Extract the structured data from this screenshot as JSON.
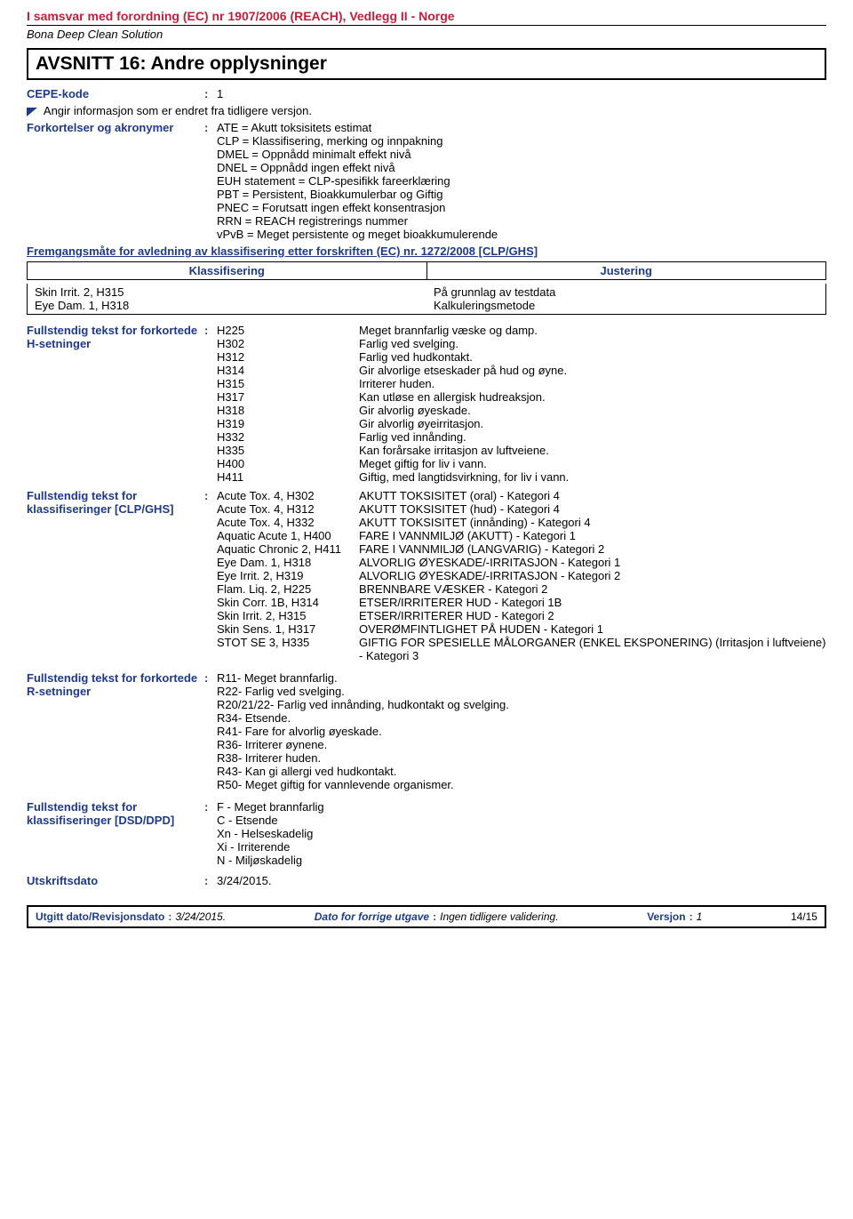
{
  "header": {
    "regulation": "I samsvar med forordning (EC) nr 1907/2006 (REACH), Vedlegg II - Norge",
    "product": "Bona Deep Clean Solution"
  },
  "section": {
    "title": "AVSNITT 16: Andre opplysninger"
  },
  "cepe": {
    "label": "CEPE-kode",
    "value": "1"
  },
  "change_note": "Angir informasjon som er endret fra tidligere versjon.",
  "acronyms": {
    "label": "Forkortelser og akronymer",
    "lines": [
      "ATE = Akutt toksisitets estimat",
      "CLP = Klassifisering, merking og innpakning",
      "DMEL = Oppnådd minimalt effekt nivå",
      "DNEL = Oppnådd ingen effekt nivå",
      "EUH statement = CLP-spesifikk fareerklæring",
      "PBT = Persistent, Bioakkumulerbar og Giftig",
      "PNEC = Forutsatt ingen effekt konsentrasjon",
      "RRN = REACH registrerings nummer",
      "vPvB = Meget persistente og meget bioakkumulerende"
    ]
  },
  "derivation": {
    "label": "Fremgangsmåte for avledning av klassifisering etter forskriften (EC) nr. 1272/2008 [CLP/GHS]",
    "col1": "Klassifisering",
    "col2": "Justering",
    "row1": {
      "left": "Skin Irrit. 2, H315",
      "right": "På grunnlag av testdata"
    },
    "row2": {
      "left": "Eye Dam. 1, H318",
      "right": "Kalkuleringsmetode"
    }
  },
  "hphrases": {
    "label": "Fullstendig tekst for forkortede H-setninger",
    "items": [
      {
        "code": "H225",
        "desc": "Meget brannfarlig væske og damp."
      },
      {
        "code": "H302",
        "desc": "Farlig ved svelging."
      },
      {
        "code": "H312",
        "desc": "Farlig ved hudkontakt."
      },
      {
        "code": "H314",
        "desc": "Gir alvorlige etseskader på hud og øyne."
      },
      {
        "code": "H315",
        "desc": "Irriterer huden."
      },
      {
        "code": "H317",
        "desc": "Kan utløse en allergisk hudreaksjon."
      },
      {
        "code": "H318",
        "desc": "Gir alvorlig øyeskade."
      },
      {
        "code": "H319",
        "desc": "Gir alvorlig øyeirritasjon."
      },
      {
        "code": "H332",
        "desc": "Farlig ved innånding."
      },
      {
        "code": "H335",
        "desc": "Kan forårsake irritasjon av luftveiene."
      },
      {
        "code": "H400",
        "desc": "Meget giftig for liv i vann."
      },
      {
        "code": "H411",
        "desc": "Giftig, med langtidsvirkning, for liv i vann."
      }
    ]
  },
  "clpghs": {
    "label": "Fullstendig tekst for klassifiseringer [CLP/GHS]",
    "items": [
      {
        "code": "Acute Tox. 4, H302",
        "desc": "AKUTT TOKSISITET (oral) - Kategori 4"
      },
      {
        "code": "Acute Tox. 4, H312",
        "desc": "AKUTT TOKSISITET (hud) - Kategori 4"
      },
      {
        "code": "Acute Tox. 4, H332",
        "desc": "AKUTT TOKSISITET (innånding) - Kategori 4"
      },
      {
        "code": "Aquatic Acute 1, H400",
        "desc": "FARE I VANNMILJØ (AKUTT) - Kategori 1"
      },
      {
        "code": "Aquatic Chronic 2, H411",
        "desc": "FARE I VANNMILJØ (LANGVARIG) - Kategori 2"
      },
      {
        "code": "Eye Dam. 1, H318",
        "desc": "ALVORLIG ØYESKADE/-IRRITASJON - Kategori 1"
      },
      {
        "code": "Eye Irrit. 2, H319",
        "desc": "ALVORLIG ØYESKADE/-IRRITASJON - Kategori 2"
      },
      {
        "code": "Flam. Liq. 2, H225",
        "desc": "BRENNBARE VÆSKER - Kategori 2"
      },
      {
        "code": "Skin Corr. 1B, H314",
        "desc": "ETSER/IRRITERER HUD - Kategori 1B"
      },
      {
        "code": "Skin Irrit. 2, H315",
        "desc": "ETSER/IRRITERER HUD - Kategori 2"
      },
      {
        "code": "Skin Sens. 1, H317",
        "desc": "OVERØMFINTLIGHET PÅ HUDEN - Kategori 1"
      },
      {
        "code": "STOT SE 3, H335",
        "desc": "GIFTIG FOR SPESIELLE MÅLORGANER (ENKEL EKSPONERING) (Irritasjon i luftveiene) - Kategori 3"
      }
    ]
  },
  "rphrases": {
    "label": "Fullstendig tekst for forkortede R-setninger",
    "lines": [
      "R11- Meget brannfarlig.",
      "R22- Farlig ved svelging.",
      "R20/21/22- Farlig ved innånding, hudkontakt og svelging.",
      "R34- Etsende.",
      "R41- Fare for alvorlig øyeskade.",
      "R36- Irriterer øynene.",
      "R38- Irriterer huden.",
      "R43- Kan gi allergi ved hudkontakt.",
      "R50- Meget giftig for vannlevende organismer."
    ]
  },
  "dsddpd": {
    "label": "Fullstendig tekst for klassifiseringer [DSD/DPD]",
    "lines": [
      "F - Meget brannfarlig",
      "C - Etsende",
      "Xn - Helseskadelig",
      "Xi - Irriterende",
      "N - Miljøskadelig"
    ]
  },
  "printdate": {
    "label": "Utskriftsdato",
    "value": "3/24/2015."
  },
  "footer": {
    "issued_label": "Utgitt dato/Revisjonsdato",
    "issued_value": "3/24/2015.",
    "prev_label": "Dato for forrige utgave",
    "prev_value": "Ingen tidligere validering.",
    "version_label": "Versjon",
    "version_value": "1",
    "page": "14/15"
  }
}
